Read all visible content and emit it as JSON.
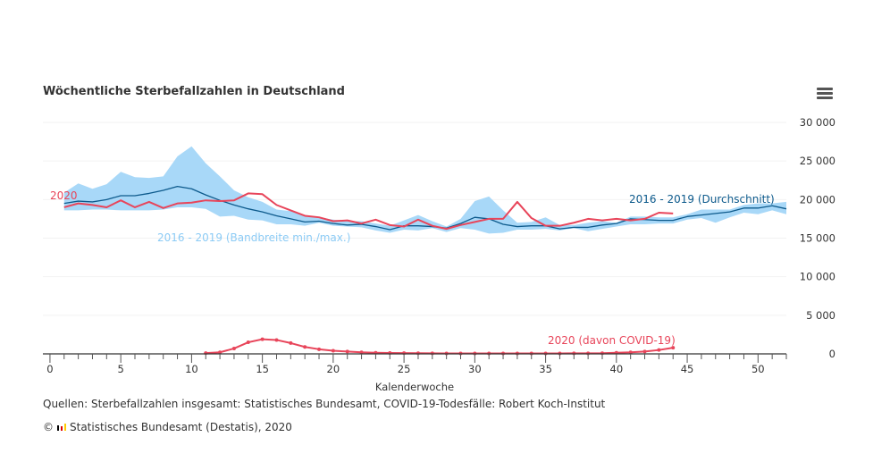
{
  "chart_data": {
    "type": "line",
    "title": "Wöchentliche Sterbefallzahlen in Deutschland",
    "xlabel": "Kalenderwoche",
    "ylabel": "",
    "xlim": [
      -0.5,
      52
    ],
    "ylim": [
      0,
      30000
    ],
    "xticks": [
      0,
      5,
      10,
      15,
      20,
      25,
      30,
      35,
      40,
      45,
      50
    ],
    "yticks": [
      0,
      5000,
      10000,
      15000,
      20000,
      25000,
      30000
    ],
    "ytick_labels": [
      "0",
      "5 000",
      "10 000",
      "15 000",
      "20 000",
      "25 000",
      "30 000"
    ],
    "grid": true,
    "x": [
      1,
      2,
      3,
      4,
      5,
      6,
      7,
      8,
      9,
      10,
      11,
      12,
      13,
      14,
      15,
      16,
      17,
      18,
      19,
      20,
      21,
      22,
      23,
      24,
      25,
      26,
      27,
      28,
      29,
      30,
      31,
      32,
      33,
      34,
      35,
      36,
      37,
      38,
      39,
      40,
      41,
      42,
      43,
      44,
      45,
      46,
      47,
      48,
      49,
      50,
      51,
      52
    ],
    "band": {
      "name": "2016 - 2019 (Bandbreite min./max.)",
      "color": "#a8d8f8",
      "min": [
        18600,
        18600,
        18700,
        18700,
        18600,
        18600,
        18600,
        18700,
        19000,
        19000,
        18800,
        17800,
        17900,
        17400,
        17300,
        16800,
        16800,
        16600,
        17000,
        16600,
        16500,
        16400,
        16000,
        15700,
        16100,
        16000,
        16300,
        15800,
        16300,
        16100,
        15600,
        15700,
        16100,
        16100,
        16200,
        16000,
        16300,
        15900,
        16200,
        16500,
        16800,
        16800,
        16900,
        16900,
        17400,
        17600,
        17000,
        17700,
        18300,
        18100,
        18600,
        18100
      ],
      "max": [
        20900,
        22100,
        21400,
        22000,
        23600,
        22900,
        22800,
        23000,
        25600,
        26900,
        24700,
        23000,
        21200,
        20300,
        19700,
        18700,
        18500,
        17800,
        17700,
        17400,
        17200,
        17200,
        16900,
        16600,
        17300,
        18000,
        17200,
        16500,
        17500,
        19800,
        20400,
        18600,
        17000,
        17100,
        17700,
        16700,
        16700,
        17000,
        17200,
        17000,
        17800,
        17800,
        17700,
        17700,
        18100,
        18700,
        18700,
        18700,
        19300,
        19500,
        19500,
        19700
      ]
    },
    "series": [
      {
        "name": "2016 - 2019 (Durchschnitt)",
        "color": "#0d5a8c",
        "values": [
          19500,
          19800,
          19700,
          20000,
          20500,
          20500,
          20800,
          21200,
          21700,
          21400,
          20600,
          19900,
          19300,
          18800,
          18400,
          17900,
          17500,
          17100,
          17200,
          16900,
          16700,
          16800,
          16500,
          16100,
          16600,
          16600,
          16500,
          16300,
          16900,
          17700,
          17500,
          16800,
          16500,
          16600,
          16600,
          16200,
          16400,
          16400,
          16700,
          16900,
          17500,
          17400,
          17300,
          17300,
          17800,
          18000,
          18200,
          18400,
          18900,
          18900,
          19200,
          18800
        ]
      },
      {
        "name": "2020",
        "color": "#e8455a",
        "values": [
          19000,
          19500,
          19300,
          19000,
          19900,
          19000,
          19700,
          18900,
          19500,
          19600,
          19900,
          19800,
          19900,
          20800,
          20700,
          19300,
          18600,
          17900,
          17700,
          17200,
          17300,
          16900,
          17400,
          16700,
          16500,
          17400,
          16600,
          16200,
          16700,
          17100,
          17500,
          17500,
          19700,
          17600,
          16600,
          16600,
          17000,
          17500,
          17300,
          17500,
          17300,
          17500,
          18300,
          18200,
          null,
          null,
          null,
          null,
          null,
          null,
          null,
          null
        ]
      },
      {
        "name": "2020 (davon COVID-19)",
        "color": "#e8455a",
        "values": [
          null,
          null,
          null,
          null,
          null,
          null,
          null,
          null,
          null,
          null,
          100,
          200,
          700,
          1500,
          1900,
          1800,
          1400,
          900,
          600,
          400,
          300,
          200,
          150,
          120,
          100,
          80,
          70,
          60,
          60,
          60,
          60,
          60,
          60,
          60,
          60,
          60,
          70,
          70,
          80,
          150,
          200,
          300,
          500,
          800,
          null,
          null,
          null,
          null,
          null,
          null,
          null,
          null
        ]
      }
    ]
  },
  "footer": {
    "sources": "Quellen: Sterbefallzahlen insgesamt: Statistisches Bundesamt, COVID-19-Todesfälle: Robert Koch-Institut",
    "copyright": "©",
    "publisher": "Statistisches Bundesamt (Destatis), 2020"
  },
  "menu_icon": "hamburger-menu-icon"
}
